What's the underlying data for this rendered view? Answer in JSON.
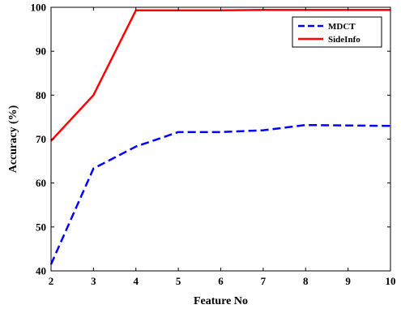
{
  "chart_data": {
    "type": "line",
    "title": "",
    "xlabel": "Feature No",
    "ylabel": "Accuracy (%)",
    "xlim": [
      2,
      10
    ],
    "ylim": [
      40,
      100
    ],
    "x_ticks": [
      2,
      3,
      4,
      5,
      6,
      7,
      8,
      9,
      10
    ],
    "y_ticks": [
      40,
      50,
      60,
      70,
      80,
      90,
      100
    ],
    "grid": false,
    "legend_position": "top-right",
    "x": [
      2,
      3,
      4,
      5,
      6,
      7,
      8,
      9,
      10
    ],
    "series": [
      {
        "name": "MDCT",
        "color": "#0000ff",
        "line_style": "dashed",
        "values": [
          41.5,
          63.3,
          68.3,
          71.6,
          71.6,
          72.0,
          73.2,
          73.1,
          73.0
        ]
      },
      {
        "name": "SideInfo",
        "color": "#ff0000",
        "line_style": "solid",
        "values": [
          69.6,
          80.0,
          99.3,
          99.3,
          99.3,
          99.4,
          99.4,
          99.4,
          99.4
        ]
      }
    ]
  }
}
